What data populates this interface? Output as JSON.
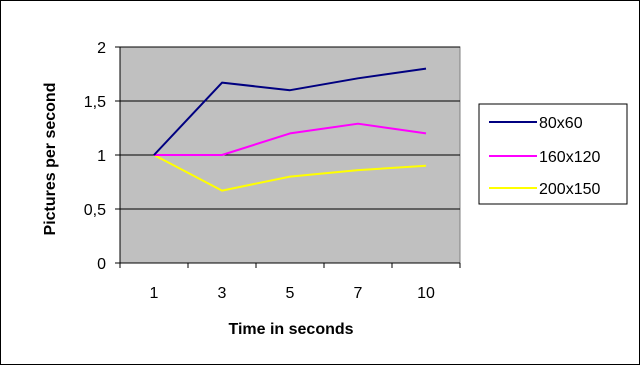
{
  "chart_data": {
    "type": "line",
    "categories": [
      "1",
      "3",
      "5",
      "7",
      "10"
    ],
    "series": [
      {
        "name": "80x60",
        "values": [
          1.0,
          1.67,
          1.6,
          1.71,
          1.8
        ],
        "color": "#000080"
      },
      {
        "name": "160x120",
        "values": [
          1.0,
          1.0,
          1.2,
          1.29,
          1.2
        ],
        "color": "#ff00ff"
      },
      {
        "name": "200x150",
        "values": [
          1.0,
          0.67,
          0.8,
          0.86,
          0.9
        ],
        "color": "#ffff00"
      }
    ],
    "title": "",
    "xlabel": "Time in seconds",
    "ylabel": "Pictures per second",
    "ylim": [
      0,
      2
    ],
    "yticks": [
      0,
      0.5,
      1,
      1.5,
      2
    ],
    "ytick_labels": [
      "0",
      "0,5",
      "1",
      "1,5",
      "2"
    ],
    "grid": "horizontal",
    "legend_position": "right",
    "plot_background": "#c0c0c0"
  }
}
